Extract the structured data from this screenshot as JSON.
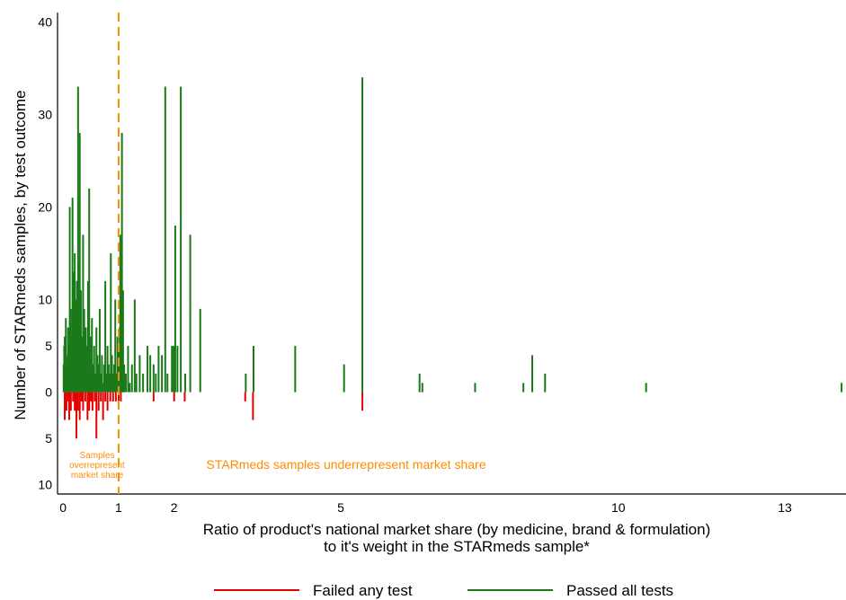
{
  "chart_data": {
    "type": "bar",
    "xlabel_lines": [
      "Ratio of product's national market share (by medicine, brand & formulation)",
      "to it's weight in the STARmeds sample*"
    ],
    "ylabel": "Number of STARmeds samples, by test outcome",
    "x_ticks": [
      {
        "value": 0,
        "label": "0"
      },
      {
        "value": 1,
        "label": "1"
      },
      {
        "value": 2,
        "label": "2"
      },
      {
        "value": 5,
        "label": "5"
      },
      {
        "value": 10,
        "label": "10"
      },
      {
        "value": 13,
        "label": "13"
      }
    ],
    "y_ticks": [
      {
        "value": 40,
        "label": "40"
      },
      {
        "value": 30,
        "label": "30"
      },
      {
        "value": 20,
        "label": "20"
      },
      {
        "value": 10,
        "label": "10"
      },
      {
        "value": 5,
        "label": "5"
      },
      {
        "value": 0,
        "label": "0"
      },
      {
        "value": -5,
        "label": "5"
      },
      {
        "value": -10,
        "label": "10"
      }
    ],
    "xlim": [
      -0.1,
      14.1
    ],
    "ylim": [
      -11,
      41
    ],
    "reference_line": {
      "x": 1,
      "color": "#ff8c00"
    },
    "annotations": {
      "left": [
        "Samples",
        "overrepresent",
        "market share"
      ],
      "right": "STARmeds samples underrepresent market share"
    },
    "series": [
      {
        "name": "Passed all tests",
        "color": "#1a7a1a",
        "points": [
          [
            0.01,
            3
          ],
          [
            0.02,
            5
          ],
          [
            0.03,
            6
          ],
          [
            0.04,
            2
          ],
          [
            0.05,
            8
          ],
          [
            0.06,
            4
          ],
          [
            0.07,
            1
          ],
          [
            0.08,
            3
          ],
          [
            0.09,
            7
          ],
          [
            0.1,
            2
          ],
          [
            0.11,
            5
          ],
          [
            0.12,
            20
          ],
          [
            0.13,
            3
          ],
          [
            0.14,
            9
          ],
          [
            0.15,
            2
          ],
          [
            0.16,
            6
          ],
          [
            0.17,
            21
          ],
          [
            0.18,
            4
          ],
          [
            0.19,
            13
          ],
          [
            0.2,
            3
          ],
          [
            0.21,
            15
          ],
          [
            0.22,
            1
          ],
          [
            0.23,
            10
          ],
          [
            0.24,
            2
          ],
          [
            0.25,
            12
          ],
          [
            0.26,
            5
          ],
          [
            0.27,
            33
          ],
          [
            0.28,
            3
          ],
          [
            0.29,
            14
          ],
          [
            0.3,
            28
          ],
          [
            0.31,
            2
          ],
          [
            0.32,
            11
          ],
          [
            0.33,
            4
          ],
          [
            0.34,
            6
          ],
          [
            0.35,
            2
          ],
          [
            0.36,
            17
          ],
          [
            0.37,
            3
          ],
          [
            0.38,
            9
          ],
          [
            0.39,
            4
          ],
          [
            0.4,
            1
          ],
          [
            0.41,
            7
          ],
          [
            0.42,
            3
          ],
          [
            0.43,
            5
          ],
          [
            0.44,
            2
          ],
          [
            0.45,
            12
          ],
          [
            0.46,
            4
          ],
          [
            0.47,
            22
          ],
          [
            0.48,
            3
          ],
          [
            0.49,
            6
          ],
          [
            0.5,
            2
          ],
          [
            0.52,
            8
          ],
          [
            0.54,
            3
          ],
          [
            0.56,
            5
          ],
          [
            0.58,
            2
          ],
          [
            0.6,
            7
          ],
          [
            0.62,
            4
          ],
          [
            0.64,
            3
          ],
          [
            0.66,
            9
          ],
          [
            0.68,
            2
          ],
          [
            0.7,
            4
          ],
          [
            0.72,
            1
          ],
          [
            0.74,
            3
          ],
          [
            0.76,
            12
          ],
          [
            0.78,
            2
          ],
          [
            0.8,
            5
          ],
          [
            0.82,
            3
          ],
          [
            0.84,
            2
          ],
          [
            0.86,
            15
          ],
          [
            0.88,
            4
          ],
          [
            0.9,
            2
          ],
          [
            0.92,
            3
          ],
          [
            0.94,
            10
          ],
          [
            0.96,
            2
          ],
          [
            0.98,
            6
          ],
          [
            1.0,
            5
          ],
          [
            1.01,
            3
          ],
          [
            1.02,
            7
          ],
          [
            1.03,
            17
          ],
          [
            1.04,
            4
          ],
          [
            1.05,
            10
          ],
          [
            1.06,
            28
          ],
          [
            1.07,
            2
          ],
          [
            1.08,
            11
          ],
          [
            1.1,
            3
          ],
          [
            1.13,
            2
          ],
          [
            1.17,
            5
          ],
          [
            1.2,
            1
          ],
          [
            1.24,
            3
          ],
          [
            1.29,
            10
          ],
          [
            1.32,
            2
          ],
          [
            1.38,
            4
          ],
          [
            1.44,
            2
          ],
          [
            1.52,
            5
          ],
          [
            1.57,
            4
          ],
          [
            1.63,
            3
          ],
          [
            1.67,
            2
          ],
          [
            1.72,
            5
          ],
          [
            1.78,
            4
          ],
          [
            1.84,
            33
          ],
          [
            1.88,
            2
          ],
          [
            1.96,
            5
          ],
          [
            1.99,
            5
          ],
          [
            2.02,
            18
          ],
          [
            2.06,
            5
          ],
          [
            2.12,
            33
          ],
          [
            2.2,
            2
          ],
          [
            2.29,
            17
          ],
          [
            2.47,
            9
          ],
          [
            3.29,
            2
          ],
          [
            3.43,
            5
          ],
          [
            4.18,
            5
          ],
          [
            5.06,
            3
          ],
          [
            5.39,
            34
          ],
          [
            6.42,
            2
          ],
          [
            6.47,
            1
          ],
          [
            7.42,
            1
          ],
          [
            8.29,
            1
          ],
          [
            8.45,
            4
          ],
          [
            8.68,
            2
          ],
          [
            10.5,
            1
          ],
          [
            14.02,
            1
          ]
        ]
      },
      {
        "name": "Failed any test",
        "color": "#e50000",
        "points": [
          [
            0.03,
            3
          ],
          [
            0.06,
            2
          ],
          [
            0.09,
            1
          ],
          [
            0.11,
            3
          ],
          [
            0.14,
            2
          ],
          [
            0.18,
            1
          ],
          [
            0.21,
            2
          ],
          [
            0.24,
            5
          ],
          [
            0.27,
            2
          ],
          [
            0.3,
            3
          ],
          [
            0.33,
            1
          ],
          [
            0.36,
            2
          ],
          [
            0.4,
            1
          ],
          [
            0.44,
            3
          ],
          [
            0.47,
            2
          ],
          [
            0.5,
            1
          ],
          [
            0.53,
            2
          ],
          [
            0.57,
            1
          ],
          [
            0.6,
            5
          ],
          [
            0.64,
            2
          ],
          [
            0.68,
            1
          ],
          [
            0.72,
            3
          ],
          [
            0.76,
            1
          ],
          [
            0.8,
            2
          ],
          [
            0.85,
            1
          ],
          [
            0.9,
            1
          ],
          [
            0.95,
            1
          ],
          [
            1.0,
            1
          ],
          [
            1.04,
            1
          ],
          [
            1.63,
            1
          ],
          [
            2.0,
            1
          ],
          [
            2.19,
            1
          ],
          [
            3.28,
            1
          ],
          [
            3.42,
            3
          ],
          [
            5.39,
            2
          ]
        ]
      }
    ],
    "legend": {
      "placement": "bottom",
      "entries": [
        {
          "label": "Failed any test",
          "color": "#e50000"
        },
        {
          "label": "Passed all tests",
          "color": "#1a7a1a"
        }
      ]
    }
  }
}
